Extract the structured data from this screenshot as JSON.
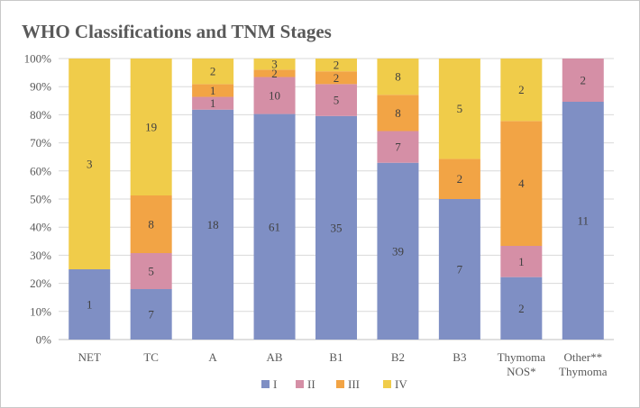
{
  "chart_data": {
    "type": "bar",
    "stacked": "percent",
    "title": "WHO Classifications and TNM Stages",
    "xlabel": "",
    "ylabel": "",
    "ylim": [
      0,
      100
    ],
    "yticks": [
      "0%",
      "10%",
      "20%",
      "30%",
      "40%",
      "50%",
      "60%",
      "70%",
      "80%",
      "90%",
      "100%"
    ],
    "grid": true,
    "legend_position": "bottom",
    "categories": [
      [
        "NET"
      ],
      [
        "TC"
      ],
      [
        "A"
      ],
      [
        "AB"
      ],
      [
        "B1"
      ],
      [
        "B2"
      ],
      [
        "B3"
      ],
      [
        "Thymoma",
        "NOS*"
      ],
      [
        "Other**",
        "Thymoma"
      ]
    ],
    "series": [
      {
        "name": "I",
        "color": "#7f8fc4",
        "values": [
          1,
          7,
          18,
          61,
          35,
          39,
          7,
          2,
          11
        ]
      },
      {
        "name": "II",
        "color": "#d58fa6",
        "values": [
          0,
          5,
          1,
          10,
          5,
          7,
          0,
          1,
          2
        ]
      },
      {
        "name": "III",
        "color": "#f2a445",
        "values": [
          0,
          8,
          1,
          2,
          2,
          8,
          2,
          4,
          0
        ]
      },
      {
        "name": "IV",
        "color": "#f0cc4a",
        "values": [
          3,
          19,
          2,
          3,
          2,
          8,
          5,
          2,
          0
        ]
      }
    ]
  }
}
